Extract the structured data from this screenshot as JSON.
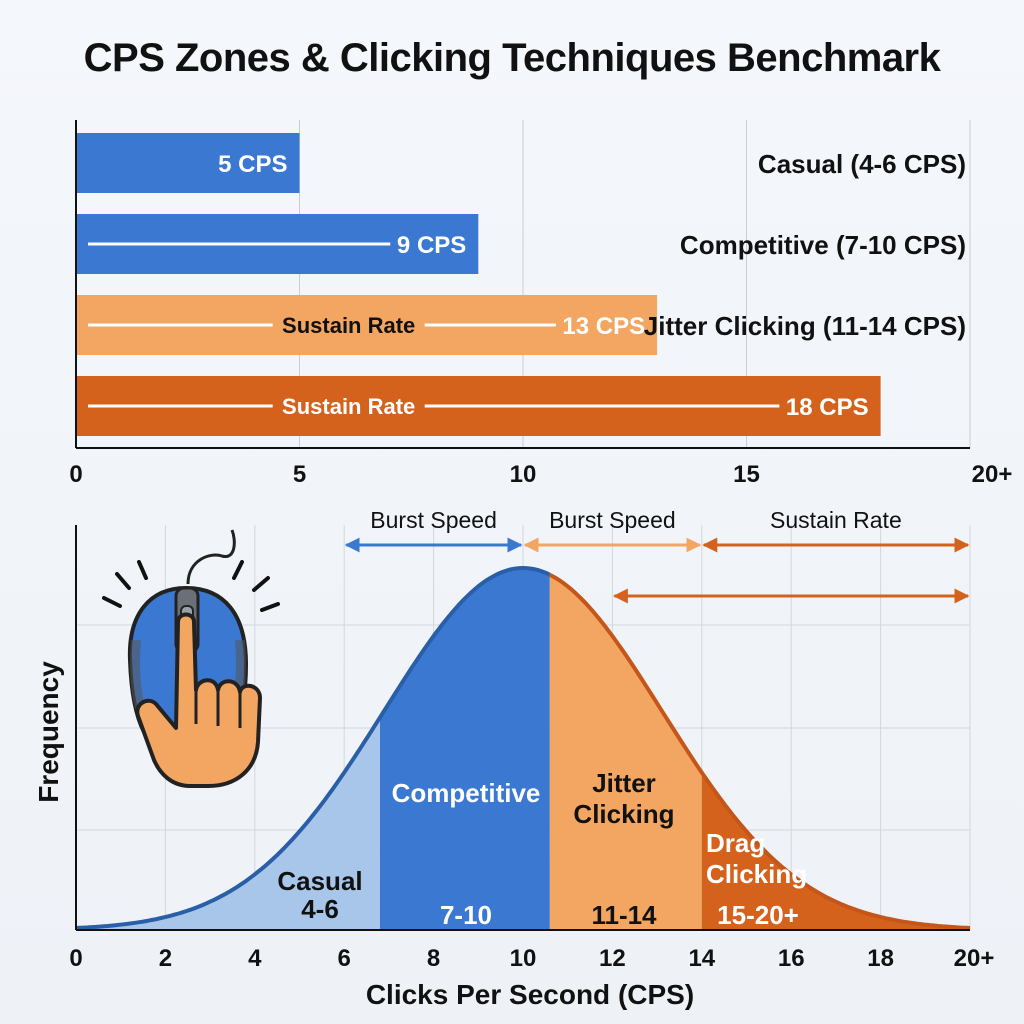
{
  "title": "CPS Zones & Clicking Techniques Benchmark",
  "colors": {
    "casual": "#3a78d2",
    "competitive": "#3a78d2",
    "jitter": "#f2a662",
    "drag": "#d4621c",
    "casual_fill": "#a7c6ea",
    "competitive_fill": "#3a78d2",
    "jitter_fill": "#f2a662",
    "drag_fill": "#d4621c",
    "curve": "#2a5fa8",
    "curve_right": "#c4561a",
    "arrow_blue": "#3a78d2",
    "arrow_orange": "#d4621c",
    "arrow_light_orange": "#f2a662"
  },
  "chart_data": [
    {
      "type": "bar",
      "orientation": "horizontal",
      "xlim": [
        0,
        20
      ],
      "x_ticks": [
        "0",
        "5",
        "10",
        "15",
        "20+"
      ],
      "grid": true,
      "bars": [
        {
          "category": "Casual (4-6 CPS)",
          "value": 5,
          "label": "5 CPS",
          "inner_label": "",
          "color_key": "casual"
        },
        {
          "category": "Competitive (7-10 CPS)",
          "value": 9,
          "label": "9 CPS",
          "inner_label": "",
          "color_key": "competitive"
        },
        {
          "category": "Jitter Clicking (11-14 CPS)",
          "value": 13,
          "label": "13 CPS",
          "inner_label": "Sustain Rate",
          "color_key": "jitter"
        },
        {
          "category": "",
          "value": 18,
          "label": "18 CPS",
          "inner_label": "Sustain Rate",
          "color_key": "drag"
        }
      ]
    },
    {
      "type": "area",
      "xlabel": "Clicks Per Second (CPS)",
      "ylabel": "Frequency",
      "xlim": [
        0,
        20
      ],
      "x_ticks": [
        "0",
        "2",
        "4",
        "6",
        "8",
        "10",
        "12",
        "14",
        "16",
        "18",
        "20+"
      ],
      "grid": true,
      "distribution": {
        "peak_x": 10,
        "spread_sd": 3.1
      },
      "zones": [
        {
          "name": "Casual",
          "range": "4-6",
          "x_start": 0,
          "x_end": 6.8,
          "color_key": "casual_fill",
          "label_color": "#111"
        },
        {
          "name": "Competitive",
          "range": "7-10",
          "x_start": 6.8,
          "x_end": 10.6,
          "color_key": "competitive_fill",
          "label_color": "#ffffff"
        },
        {
          "name": "Jitter Clicking",
          "range": "11-14",
          "x_start": 10.6,
          "x_end": 14,
          "color_key": "jitter_fill",
          "label_color": "#111"
        },
        {
          "name": "Drag Clicking",
          "range": "15-20+",
          "x_start": 14,
          "x_end": 20,
          "color_key": "drag_fill",
          "label_color": "#ffffff"
        }
      ],
      "annotations": [
        {
          "text": "Burst Speed",
          "x_start": 6,
          "x_end": 10,
          "row": 0,
          "color_key": "arrow_blue"
        },
        {
          "text": "Burst Speed",
          "x_start": 10,
          "x_end": 14,
          "row": 0,
          "color_key": "arrow_light_orange"
        },
        {
          "text": "Sustain Rate",
          "x_start": 14,
          "x_end": 20,
          "row": 0,
          "color_key": "arrow_orange"
        },
        {
          "text": "",
          "x_start": 12,
          "x_end": 20,
          "row": 1,
          "color_key": "arrow_orange"
        }
      ]
    }
  ]
}
